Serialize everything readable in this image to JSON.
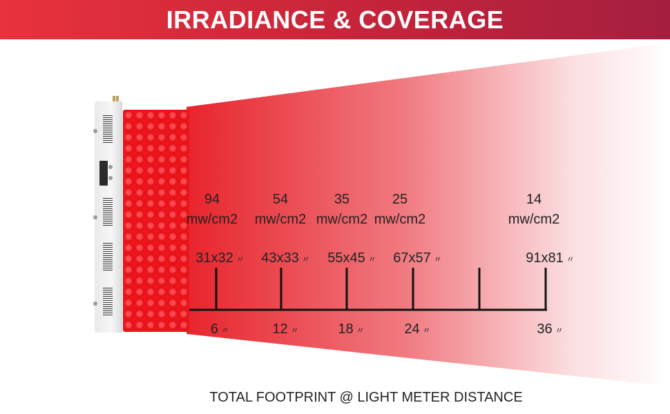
{
  "title": "IRRADIANCE & COVERAGE",
  "colors": {
    "banner_start": "#e8323c",
    "banner_end": "#a41f3f",
    "beam": "#e8242c"
  },
  "irradiance": [
    {
      "value": "94",
      "unit": "mw/cm2"
    },
    {
      "value": "54",
      "unit": "mw/cm2"
    },
    {
      "value": "35",
      "unit": "mw/cm2"
    },
    {
      "value": "25",
      "unit": "mw/cm2"
    },
    {
      "value": "14",
      "unit": "mw/cm2"
    }
  ],
  "coverage": [
    "31x32",
    "43x33",
    "55x45",
    "67x57",
    "91x81"
  ],
  "distances": [
    "6",
    "12",
    "18",
    "24",
    "36"
  ],
  "inch_mark": "〃",
  "footer": "TOTAL FOOTPRINT @ LIGHT METER DISTANCE"
}
